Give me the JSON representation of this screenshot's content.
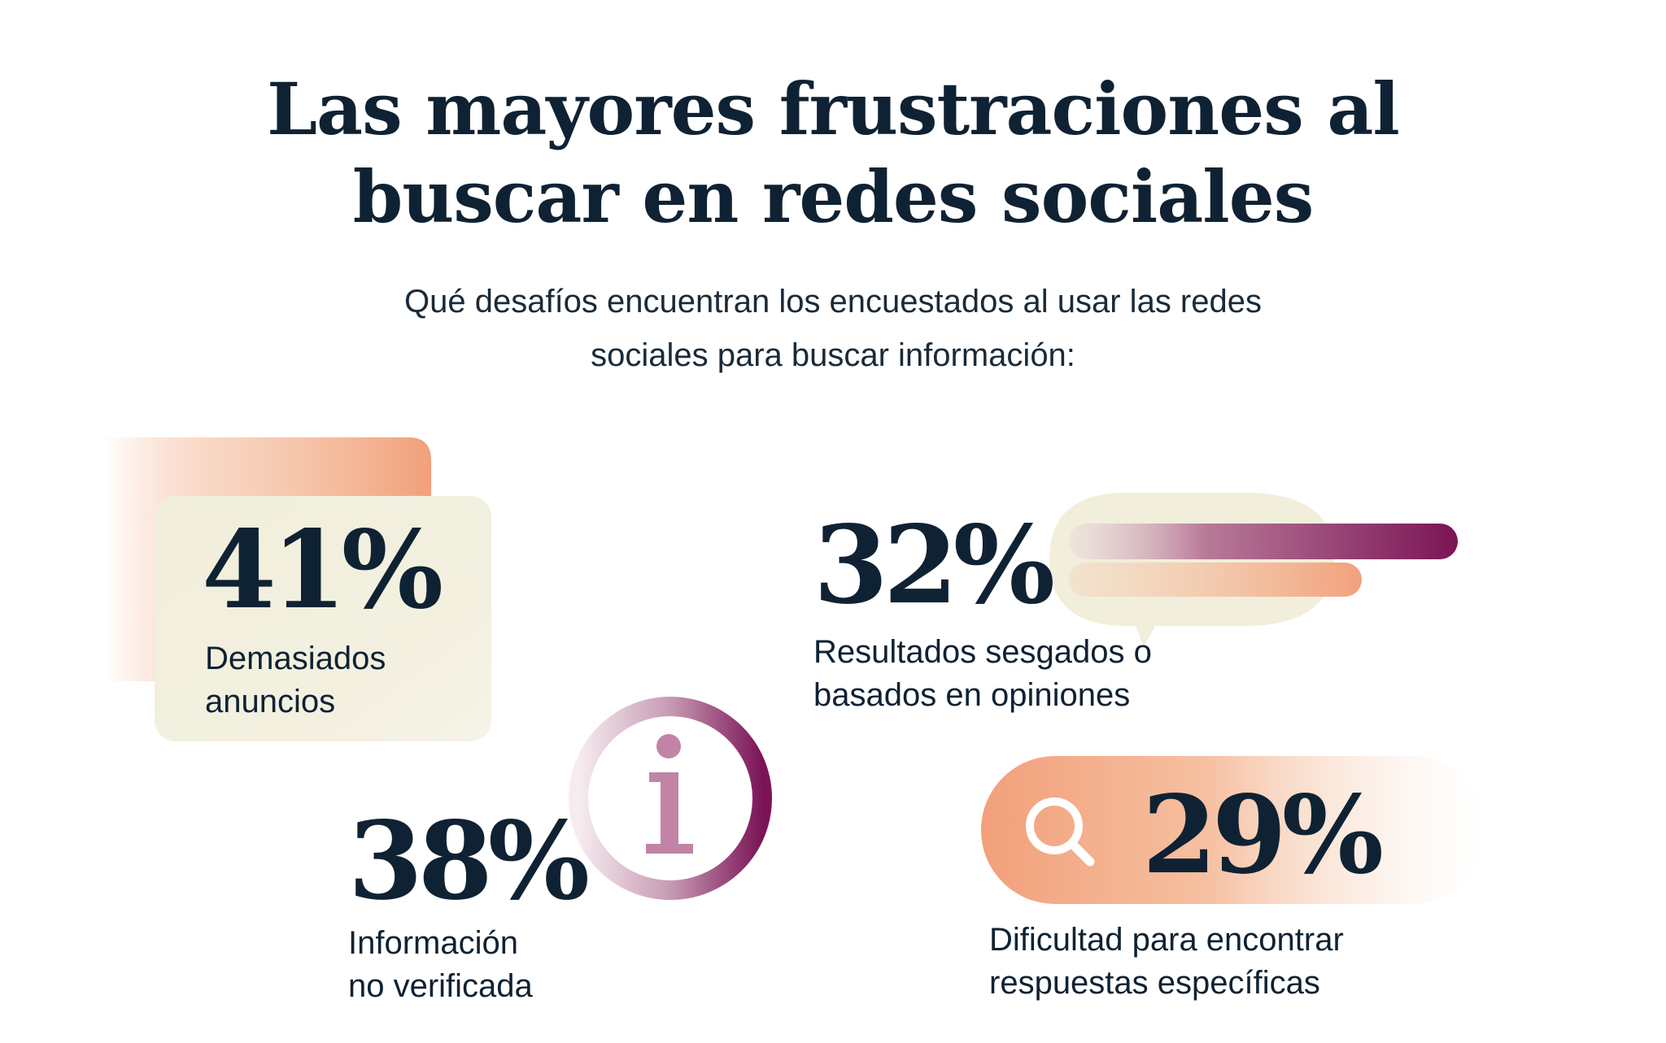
{
  "title": {
    "line1": "Las mayores frustraciones al",
    "line2": "buscar en redes sociales"
  },
  "subtitle": {
    "line1": "Qué desafíos encuentran los encuestados al usar las redes",
    "line2": "sociales para buscar información:"
  },
  "chart_data": {
    "type": "table",
    "title": "Las mayores frustraciones al buscar en redes sociales",
    "subtitle": "Qué desafíos encuentran los encuestados al usar las redes sociales para buscar información:",
    "unit": "%",
    "items": [
      {
        "value": 41,
        "display": "41%",
        "label_lines": [
          "Demasiados",
          "anuncios"
        ]
      },
      {
        "value": 32,
        "display": "32%",
        "label_lines": [
          "Resultados sesgados o",
          "basados en opiniones"
        ]
      },
      {
        "value": 38,
        "display": "38%",
        "label_lines": [
          "Información",
          "no verificada"
        ]
      },
      {
        "value": 29,
        "display": "29%",
        "label_lines": [
          "Dificultad para encontrar",
          "respuestas específicas"
        ]
      }
    ]
  },
  "icons": [
    "info-icon",
    "search-icon"
  ],
  "colors": {
    "navy": "#0f2233",
    "peach": "#f2a07a",
    "cream": "#f1eedb",
    "plum": "#7a1456"
  }
}
